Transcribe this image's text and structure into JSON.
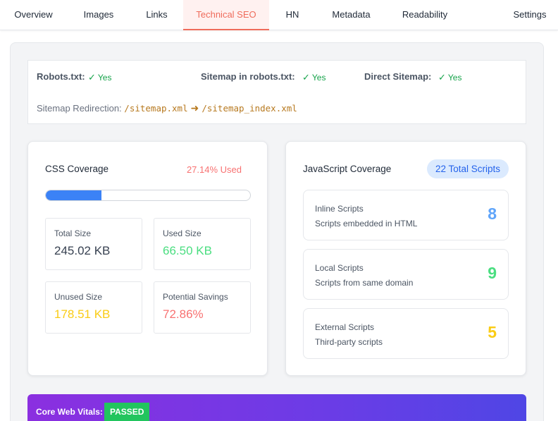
{
  "tabs": [
    {
      "label": "Overview"
    },
    {
      "label": "Images"
    },
    {
      "label": "Links"
    },
    {
      "label": "Technical SEO"
    },
    {
      "label": "HN"
    },
    {
      "label": "Metadata"
    },
    {
      "label": "Readability"
    },
    {
      "label": "Settings"
    }
  ],
  "robots": {
    "robots_label": "Robots.txt:",
    "robots_value": "Yes",
    "sitemap_label": "Sitemap in robots.txt:",
    "sitemap_value": "Yes",
    "direct_label": "Direct Sitemap:",
    "direct_value": "Yes",
    "check_glyph": "✓",
    "redirection_label": "Sitemap Redirection:",
    "redirect_from": "/sitemap.xml",
    "redirect_arrow": "➜",
    "redirect_to": "/sitemap_index.xml"
  },
  "css": {
    "title": "CSS Coverage",
    "used_label": "27.14% Used",
    "used_fraction": 0.2714,
    "stats": [
      {
        "label": "Total Size",
        "value": "245.02 KB",
        "color": "#374151"
      },
      {
        "label": "Used Size",
        "value": "66.50 KB",
        "color": "#4ade80"
      },
      {
        "label": "Unused Size",
        "value": "178.51 KB",
        "color": "#facc15"
      },
      {
        "label": "Potential Savings",
        "value": "72.86%",
        "color": "#f87171"
      }
    ]
  },
  "js": {
    "title": "JavaScript Coverage",
    "total_badge": "22 Total Scripts",
    "scripts": [
      {
        "title": "Inline Scripts",
        "subtitle": "Scripts embedded in HTML",
        "count": "8",
        "color": "#60a5fa"
      },
      {
        "title": "Local Scripts",
        "subtitle": "Scripts from same domain",
        "count": "9",
        "color": "#4ade80"
      },
      {
        "title": "External Scripts",
        "subtitle": "Third-party scripts",
        "count": "5",
        "color": "#facc15"
      }
    ]
  },
  "vitals": {
    "label": "Core Web Vitals:",
    "status": "PASSED"
  }
}
